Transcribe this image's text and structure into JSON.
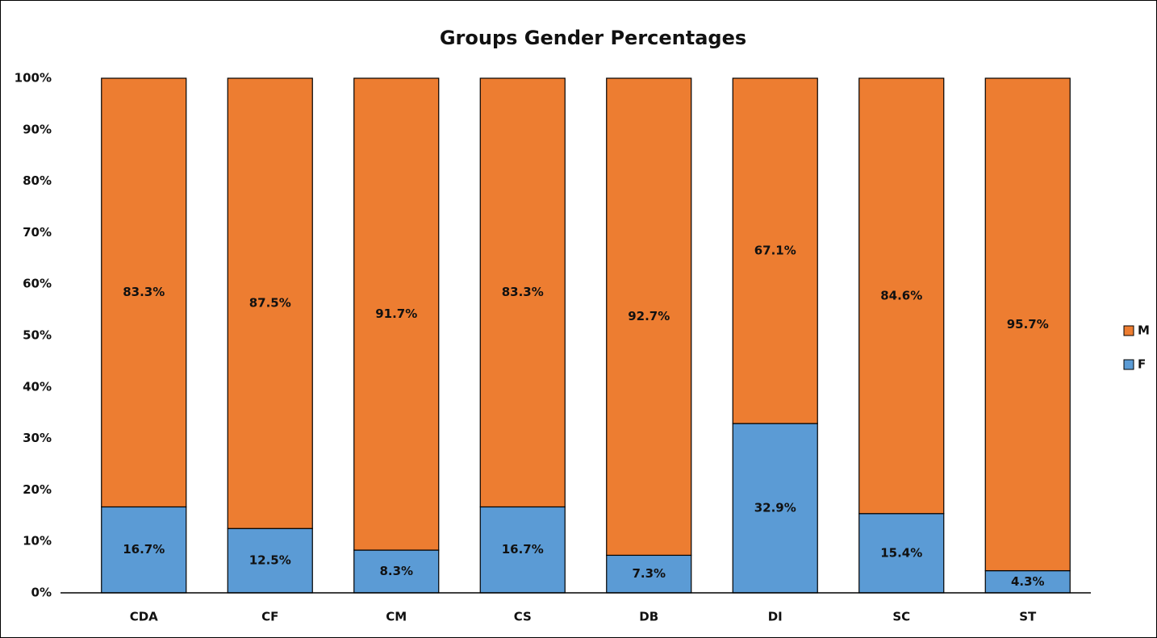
{
  "chart_data": {
    "type": "stacked_bar",
    "title": "Groups Gender Percentages",
    "categories": [
      "CDA",
      "CF",
      "CM",
      "CS",
      "DB",
      "DI",
      "SC",
      "ST"
    ],
    "series": [
      {
        "name": "F",
        "color": "#5b9bd5",
        "values": [
          16.7,
          12.5,
          8.3,
          16.7,
          7.3,
          32.9,
          15.4,
          4.3
        ],
        "value_labels": [
          "16.7%",
          "12.5%",
          "8.3%",
          "16.7%",
          "7.3%",
          "32.9%",
          "15.4%",
          "4.3%"
        ]
      },
      {
        "name": "M",
        "color": "#ed7d31",
        "values": [
          83.3,
          87.5,
          91.7,
          83.3,
          92.7,
          67.1,
          84.6,
          95.7
        ],
        "value_labels": [
          "83.3%",
          "87.5%",
          "91.7%",
          "83.3%",
          "92.7%",
          "67.1%",
          "84.6%",
          "95.7%"
        ]
      }
    ],
    "ylim": [
      0,
      100
    ],
    "yticks": [
      {
        "value": 0,
        "label": "0%"
      },
      {
        "value": 10,
        "label": "10%"
      },
      {
        "value": 20,
        "label": "20%"
      },
      {
        "value": 30,
        "label": "30%"
      },
      {
        "value": 40,
        "label": "40%"
      },
      {
        "value": 50,
        "label": "50%"
      },
      {
        "value": 60,
        "label": "60%"
      },
      {
        "value": 70,
        "label": "70%"
      },
      {
        "value": 80,
        "label": "80%"
      },
      {
        "value": 90,
        "label": "90%"
      },
      {
        "value": 100,
        "label": "100%"
      }
    ],
    "legend": "right",
    "grid": false
  }
}
